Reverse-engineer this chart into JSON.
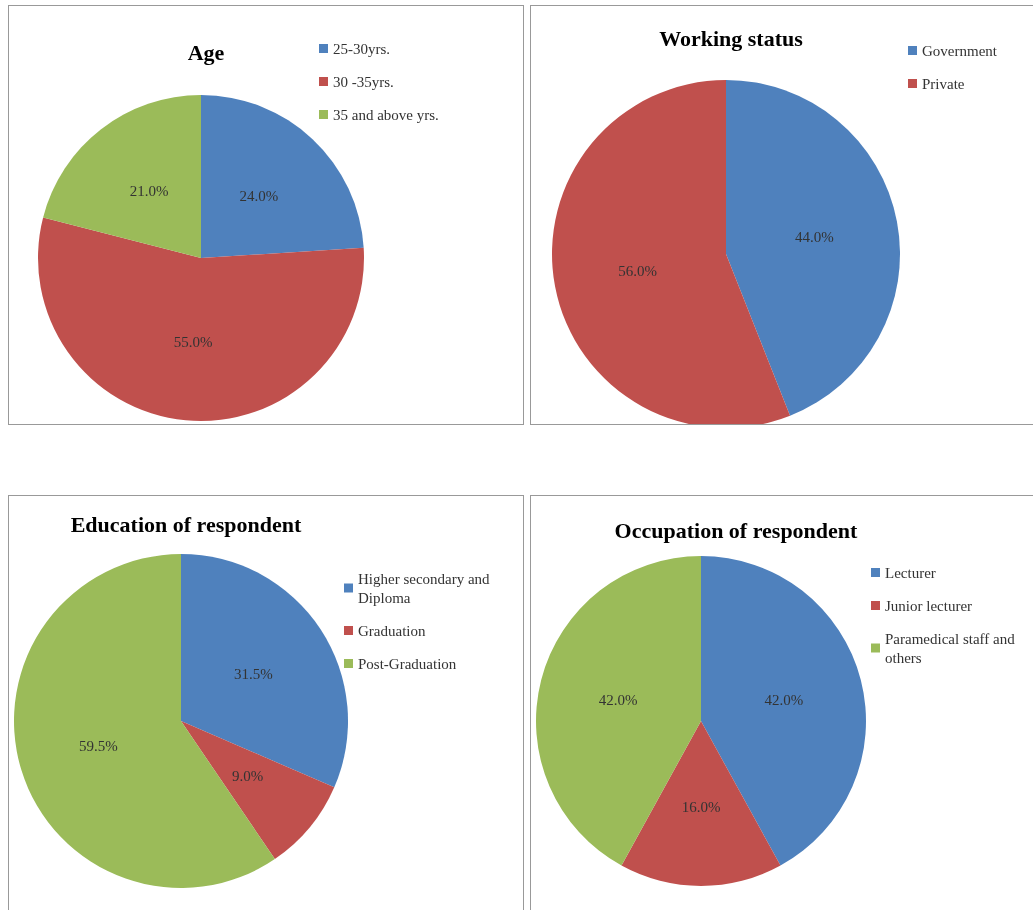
{
  "chart_data": [
    {
      "type": "pie",
      "title": "Age",
      "categories": [
        "25-30yrs.",
        "30 -35yrs.",
        "35 and above yrs."
      ],
      "values": [
        24.0,
        55.0,
        21.0
      ],
      "value_labels": [
        "24.0%",
        "55.0%",
        "21.0%"
      ],
      "colors": [
        "#4f81bd",
        "#c0504d",
        "#9bbb59"
      ],
      "legend": "top right"
    },
    {
      "type": "pie",
      "title": "Working status",
      "categories": [
        "Government",
        "Private"
      ],
      "values": [
        44.0,
        56.0
      ],
      "value_labels": [
        "44.0%",
        "56.0%"
      ],
      "colors": [
        "#4f81bd",
        "#c0504d"
      ],
      "legend": "top right"
    },
    {
      "type": "pie",
      "title": "Education of respondent",
      "categories": [
        "Higher secondary and Diploma",
        "Graduation",
        "Post-Graduation"
      ],
      "values": [
        31.5,
        9.0,
        59.5
      ],
      "value_labels": [
        "31.5%",
        "9.0%",
        "59.5%"
      ],
      "colors": [
        "#4f81bd",
        "#c0504d",
        "#9bbb59"
      ],
      "legend": "right"
    },
    {
      "type": "pie",
      "title": "Occupation of respondent",
      "categories": [
        "Lecturer",
        "Junior lecturer",
        "Paramedical staff and others"
      ],
      "values": [
        42.0,
        16.0,
        42.0
      ],
      "value_labels": [
        "42.0%",
        "16.0%",
        "42.0%"
      ],
      "colors": [
        "#4f81bd",
        "#c0504d",
        "#9bbb59"
      ],
      "legend": "right"
    }
  ]
}
